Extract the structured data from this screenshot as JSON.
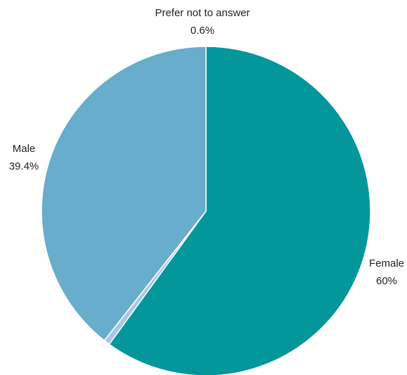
{
  "chart_data": {
    "type": "pie",
    "start_angle_deg": 0,
    "direction": "clockwise",
    "slices": [
      {
        "label": "Female",
        "value": 60,
        "value_label": "60%",
        "color": "#03979C"
      },
      {
        "label": "Prefer not to answer",
        "value": 0.6,
        "value_label": "0.6%",
        "color": "#A9C6E8"
      },
      {
        "label": "Male",
        "value": 39.4,
        "value_label": "39.4%",
        "color": "#68ADCB"
      }
    ],
    "legend": "none",
    "slice_separator_color": "#ffffff"
  }
}
